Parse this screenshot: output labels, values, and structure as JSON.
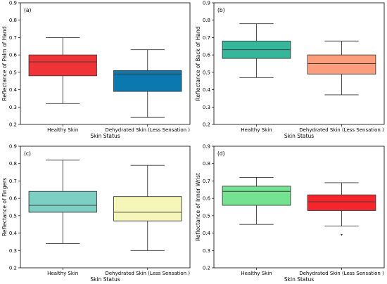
{
  "chart_data": [
    {
      "type": "box",
      "panel_label": "(a)",
      "xlabel": "Skin Status",
      "ylabel": "Reflectance of Palm of Hand",
      "ylim": [
        0.2,
        0.9
      ],
      "yticks": [
        "0.2",
        "0.3",
        "0.4",
        "0.5",
        "0.6",
        "0.7",
        "0.8",
        "0.9"
      ],
      "categories": [
        "Healthy Skin",
        "Dehydrated Skin (Less Sensation )"
      ],
      "boxes": [
        {
          "min": 0.32,
          "q1": 0.48,
          "median": 0.56,
          "q3": 0.6,
          "max": 0.7,
          "color": "#f03337",
          "outliers": []
        },
        {
          "min": 0.24,
          "q1": 0.39,
          "median": 0.49,
          "q3": 0.51,
          "max": 0.63,
          "color": "#0b79ad",
          "outliers": []
        }
      ]
    },
    {
      "type": "box",
      "panel_label": "(b)",
      "xlabel": "Skin Status",
      "ylabel": "Reflectance of Back of Hand",
      "ylim": [
        0.2,
        0.9
      ],
      "yticks": [
        "0.2",
        "0.3",
        "0.4",
        "0.5",
        "0.6",
        "0.7",
        "0.8",
        "0.9"
      ],
      "categories": [
        "Healthy Skin",
        "Dehydrated Skin (Less Sensation )"
      ],
      "boxes": [
        {
          "min": 0.47,
          "q1": 0.58,
          "median": 0.63,
          "q3": 0.68,
          "max": 0.78,
          "color": "#36b79c",
          "outliers": []
        },
        {
          "min": 0.37,
          "q1": 0.49,
          "median": 0.55,
          "q3": 0.6,
          "max": 0.68,
          "color": "#fc9e7c",
          "outliers": []
        }
      ]
    },
    {
      "type": "box",
      "panel_label": "(c)",
      "xlabel": "Skin Status",
      "ylabel": "Reflectance of Fingers",
      "ylim": [
        0.2,
        0.9
      ],
      "yticks": [
        "0.2",
        "0.3",
        "0.4",
        "0.5",
        "0.6",
        "0.7",
        "0.8",
        "0.9"
      ],
      "categories": [
        "Healthy Skin",
        "Dehydrated Skin (Less Sensation )"
      ],
      "boxes": [
        {
          "min": 0.34,
          "q1": 0.52,
          "median": 0.56,
          "q3": 0.64,
          "max": 0.82,
          "color": "#7dcfc3",
          "outliers": []
        },
        {
          "min": 0.3,
          "q1": 0.47,
          "median": 0.52,
          "q3": 0.61,
          "max": 0.79,
          "color": "#f6f6b8",
          "outliers": []
        }
      ]
    },
    {
      "type": "box",
      "panel_label": "(d)",
      "xlabel": "Skin Status",
      "ylabel": "Reflectance of Inner Wrist",
      "ylim": [
        0.2,
        0.9
      ],
      "yticks": [
        "0.2",
        "0.3",
        "0.4",
        "0.5",
        "0.6",
        "0.7",
        "0.8",
        "0.9"
      ],
      "categories": [
        "Healthy Skin",
        "Dehydrated Skin (Less Sensation )"
      ],
      "boxes": [
        {
          "min": 0.45,
          "q1": 0.56,
          "median": 0.64,
          "q3": 0.67,
          "max": 0.72,
          "color": "#73e392",
          "outliers": []
        },
        {
          "min": 0.44,
          "q1": 0.53,
          "median": 0.58,
          "q3": 0.62,
          "max": 0.69,
          "color": "#f5262b",
          "outliers": [
            0.39
          ]
        }
      ]
    }
  ]
}
